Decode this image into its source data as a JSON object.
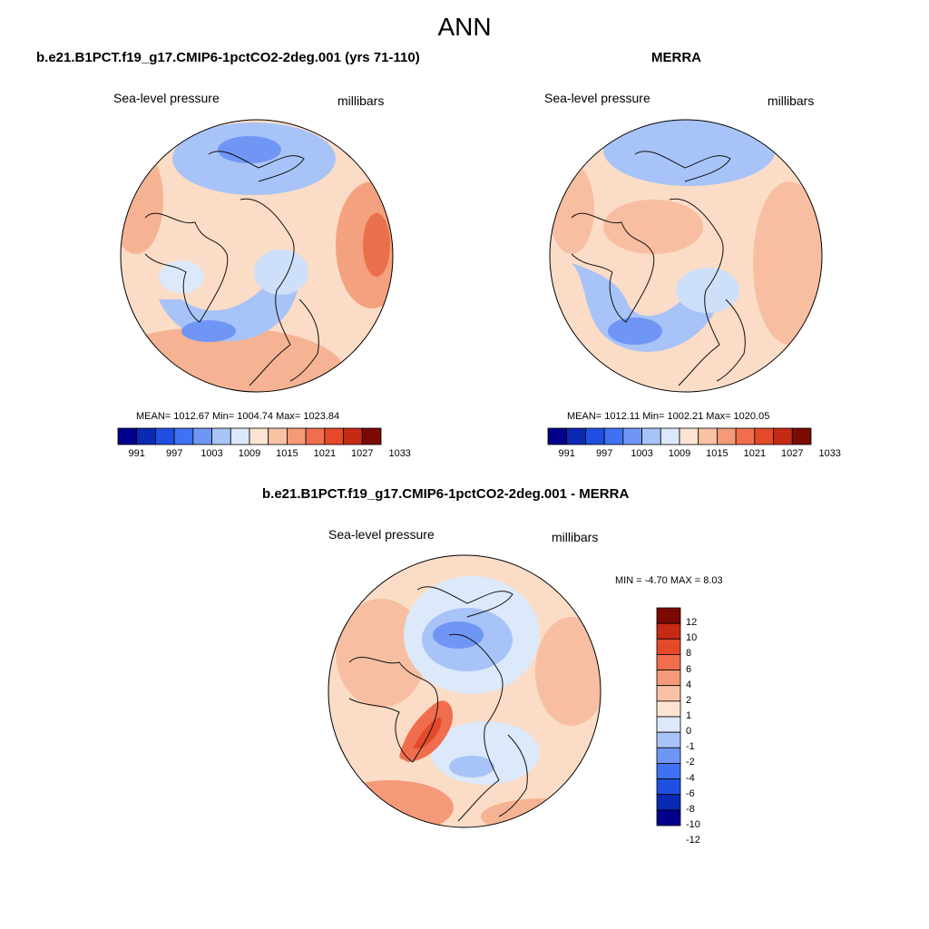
{
  "figure": {
    "title": "ANN"
  },
  "panels": {
    "model": {
      "title": "b.e21.B1PCT.f19_g17.CMIP6-1pctCO2-2deg.001 (yrs 71-110)",
      "left_label": "Sea-level pressure",
      "right_label": "millibars",
      "stats": "MEAN= 1012.67  Min= 1004.74  Max= 1023.84"
    },
    "obs": {
      "title": "MERRA",
      "left_label": "Sea-level pressure",
      "right_label": "millibars",
      "stats": "MEAN= 1012.11  Min= 1002.21  Max= 1020.05"
    },
    "diff": {
      "title": "b.e21.B1PCT.f19_g17.CMIP6-1pctCO2-2deg.001 - MERRA",
      "left_label": "Sea-level pressure",
      "right_label": "millibars",
      "stats": "MIN =  -4.70 MAX =   8.03"
    }
  },
  "colorbars": {
    "absolute": {
      "colors": [
        "#00008b",
        "#0a2ab4",
        "#1e4fe0",
        "#3f72f2",
        "#7096f5",
        "#a8c3f7",
        "#dbe9fa",
        "#fde4d2",
        "#f9c2a4",
        "#f49a78",
        "#f06e4e",
        "#e44a2a",
        "#c42a14",
        "#7c0a02"
      ],
      "tick_labels": [
        "991",
        "997",
        "1003",
        "1009",
        "1015",
        "1021",
        "1027",
        "1033"
      ]
    },
    "difference": {
      "colors": [
        "#00008b",
        "#0a2ab4",
        "#1e4fe0",
        "#3f72f2",
        "#7096f5",
        "#a8c3f7",
        "#dbe9fa",
        "#fde4d2",
        "#f9c2a4",
        "#f49a78",
        "#f06e4e",
        "#e44a2a",
        "#c42a14",
        "#7c0a02"
      ],
      "tick_labels": [
        "12",
        "10",
        "8",
        "6",
        "4",
        "2",
        "1",
        "0",
        "-1",
        "-2",
        "-4",
        "-6",
        "-8",
        "-10",
        "-12"
      ]
    }
  }
}
